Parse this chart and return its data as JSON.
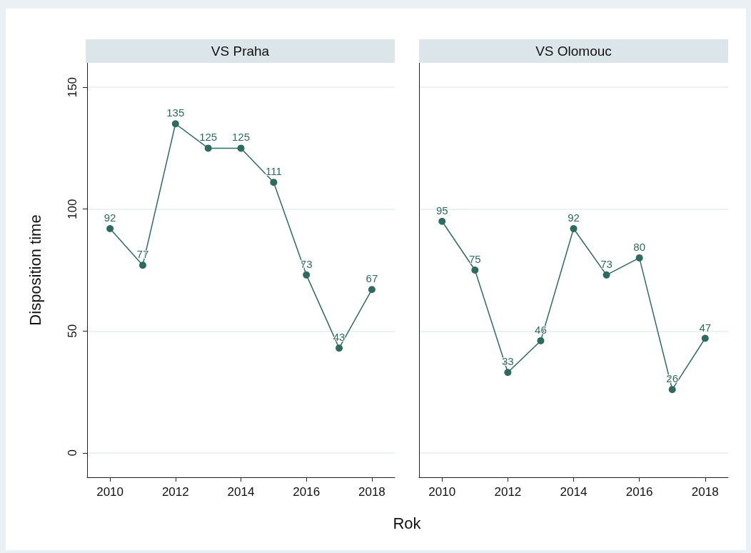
{
  "chart_data": [
    {
      "type": "line",
      "title": "VS Praha",
      "xlabel": "Rok",
      "ylabel": "Disposition time",
      "x": [
        2010,
        2011,
        2012,
        2013,
        2014,
        2015,
        2016,
        2017,
        2018
      ],
      "series": [
        {
          "color": "#2e6b5e",
          "values": [
            92,
            77,
            135,
            125,
            125,
            111,
            73,
            43,
            67
          ]
        }
      ],
      "xlim": [
        2009.3,
        2018.7
      ],
      "xticks": [
        2010,
        2012,
        2014,
        2016,
        2018
      ],
      "ylim": [
        -10,
        160
      ],
      "yticks": [
        0,
        50,
        100,
        150
      ],
      "grid": "y",
      "marker": "circle",
      "line_style": "solid",
      "data_labels": true
    },
    {
      "type": "line",
      "title": "VS Olomouc",
      "x": [
        2010,
        2011,
        2012,
        2013,
        2014,
        2015,
        2016,
        2017,
        2018
      ],
      "series": [
        {
          "color": "#2e6b5e",
          "values": [
            95,
            75,
            33,
            46,
            92,
            73,
            80,
            26,
            47
          ]
        }
      ],
      "xlim": [
        2009.3,
        2018.7
      ],
      "xticks": [
        2010,
        2012,
        2014,
        2016,
        2018
      ],
      "ylim": [
        -10,
        160
      ],
      "yticks": [
        0,
        50,
        100,
        150
      ],
      "grid": "y",
      "marker": "circle",
      "line_style": "solid",
      "data_labels": true,
      "tick_labels": "x"
    }
  ]
}
